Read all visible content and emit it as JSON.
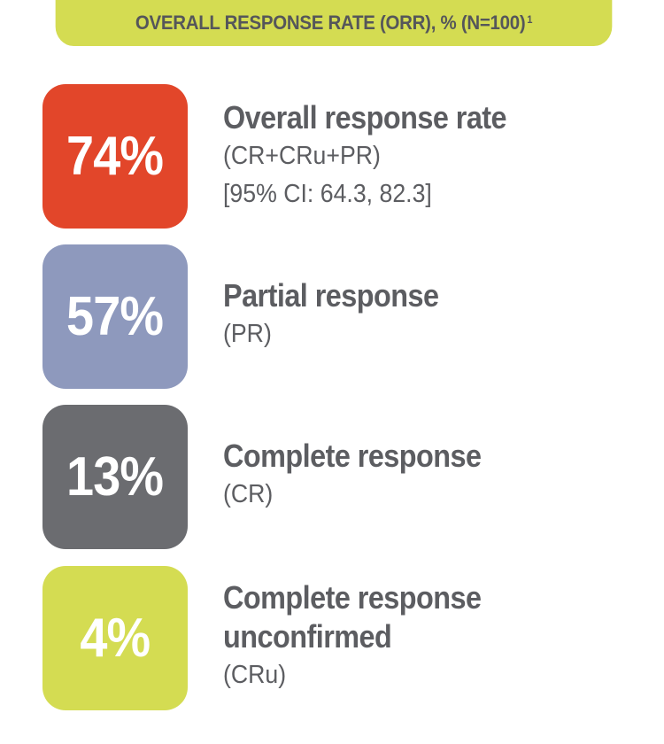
{
  "header": {
    "title": "OVERALL RESPONSE RATE (ORR), % (N=100)",
    "footnote": "1",
    "color": "#d4dc52"
  },
  "chart_data": {
    "type": "table",
    "title": "OVERALL RESPONSE RATE (ORR), % (N=100)",
    "rows": [
      {
        "value_label": "74%",
        "value": 74,
        "title": "Overall response rate",
        "lines": [
          "(CR+CRu+PR)",
          "[95% CI: 64.3, 82.3]"
        ],
        "color": "#e2462a"
      },
      {
        "value_label": "57%",
        "value": 57,
        "title": "Partial response",
        "lines": [
          "(PR)"
        ],
        "color": "#8e99bd"
      },
      {
        "value_label": "13%",
        "value": 13,
        "title": "Complete response",
        "lines": [
          "(CR)"
        ],
        "color": "#6b6c70"
      },
      {
        "value_label": "4%",
        "value": 4,
        "title_lines": [
          "Complete response",
          "unconfirmed"
        ],
        "lines": [
          "(CRu)"
        ],
        "color": "#d4dc52"
      }
    ]
  }
}
